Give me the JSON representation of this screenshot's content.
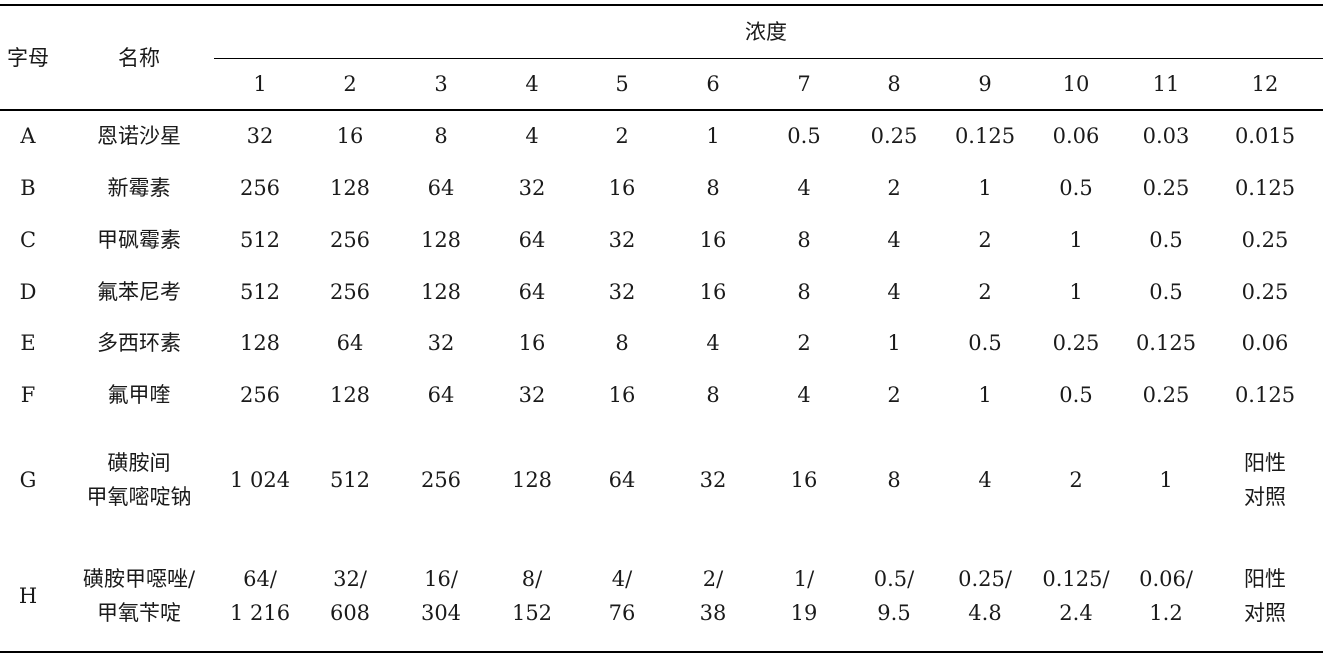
{
  "header": {
    "letter": "字母",
    "name": "名称",
    "concentration": "浓度",
    "columns": [
      "1",
      "2",
      "3",
      "4",
      "5",
      "6",
      "7",
      "8",
      "9",
      "10",
      "11",
      "12"
    ]
  },
  "rows": [
    {
      "letter": "A",
      "name": [
        "恩诺沙星"
      ],
      "values": [
        [
          "32"
        ],
        [
          "16"
        ],
        [
          "8"
        ],
        [
          "4"
        ],
        [
          "2"
        ],
        [
          "1"
        ],
        [
          "0.5"
        ],
        [
          "0.25"
        ],
        [
          "0.125"
        ],
        [
          "0.06"
        ],
        [
          "0.03"
        ],
        [
          "0.015"
        ]
      ]
    },
    {
      "letter": "B",
      "name": [
        "新霉素"
      ],
      "values": [
        [
          "256"
        ],
        [
          "128"
        ],
        [
          "64"
        ],
        [
          "32"
        ],
        [
          "16"
        ],
        [
          "8"
        ],
        [
          "4"
        ],
        [
          "2"
        ],
        [
          "1"
        ],
        [
          "0.5"
        ],
        [
          "0.25"
        ],
        [
          "0.125"
        ]
      ]
    },
    {
      "letter": "C",
      "name": [
        "甲砜霉素"
      ],
      "values": [
        [
          "512"
        ],
        [
          "256"
        ],
        [
          "128"
        ],
        [
          "64"
        ],
        [
          "32"
        ],
        [
          "16"
        ],
        [
          "8"
        ],
        [
          "4"
        ],
        [
          "2"
        ],
        [
          "1"
        ],
        [
          "0.5"
        ],
        [
          "0.25"
        ]
      ]
    },
    {
      "letter": "D",
      "name": [
        "氟苯尼考"
      ],
      "values": [
        [
          "512"
        ],
        [
          "256"
        ],
        [
          "128"
        ],
        [
          "64"
        ],
        [
          "32"
        ],
        [
          "16"
        ],
        [
          "8"
        ],
        [
          "4"
        ],
        [
          "2"
        ],
        [
          "1"
        ],
        [
          "0.5"
        ],
        [
          "0.25"
        ]
      ]
    },
    {
      "letter": "E",
      "name": [
        "多西环素"
      ],
      "values": [
        [
          "128"
        ],
        [
          "64"
        ],
        [
          "32"
        ],
        [
          "16"
        ],
        [
          "8"
        ],
        [
          "4"
        ],
        [
          "2"
        ],
        [
          "1"
        ],
        [
          "0.5"
        ],
        [
          "0.25"
        ],
        [
          "0.125"
        ],
        [
          "0.06"
        ]
      ]
    },
    {
      "letter": "F",
      "name": [
        "氟甲喹"
      ],
      "values": [
        [
          "256"
        ],
        [
          "128"
        ],
        [
          "64"
        ],
        [
          "32"
        ],
        [
          "16"
        ],
        [
          "8"
        ],
        [
          "4"
        ],
        [
          "2"
        ],
        [
          "1"
        ],
        [
          "0.5"
        ],
        [
          "0.25"
        ],
        [
          "0.125"
        ]
      ]
    },
    {
      "letter": "G",
      "name": [
        "磺胺间",
        "甲氧嘧啶钠"
      ],
      "values": [
        [
          "1 024"
        ],
        [
          "512"
        ],
        [
          "256"
        ],
        [
          "128"
        ],
        [
          "64"
        ],
        [
          "32"
        ],
        [
          "16"
        ],
        [
          "8"
        ],
        [
          "4"
        ],
        [
          "2"
        ],
        [
          "1"
        ],
        [
          "阳性",
          "对照"
        ]
      ]
    },
    {
      "letter": "H",
      "name": [
        "磺胺甲噁唑/",
        "甲氧苄啶"
      ],
      "values": [
        [
          "64/",
          "1 216"
        ],
        [
          "32/",
          "608"
        ],
        [
          "16/",
          "304"
        ],
        [
          "8/",
          "152"
        ],
        [
          "4/",
          "76"
        ],
        [
          "2/",
          "38"
        ],
        [
          "1/",
          "19"
        ],
        [
          "0.5/",
          "9.5"
        ],
        [
          "0.25/",
          "4.8"
        ],
        [
          "0.125/",
          "2.4"
        ],
        [
          "0.06/",
          "1.2"
        ],
        [
          "阳性",
          "对照"
        ]
      ]
    }
  ]
}
